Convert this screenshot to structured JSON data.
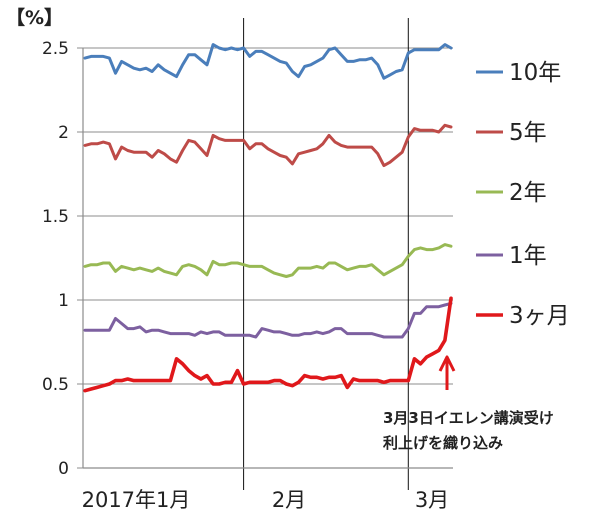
{
  "chart_data": {
    "type": "line",
    "unit_label": "【%】",
    "ylim": [
      0,
      2.5
    ],
    "y_ticks": [
      "0",
      "0.5",
      "1",
      "1.5",
      "2",
      "2.5"
    ],
    "grid": true,
    "legend_position": "right",
    "x_labels": [
      "2017年1月",
      "2月",
      "3月"
    ],
    "month_start_index": [
      0,
      26,
      53
    ],
    "annotation": {
      "lines": [
        "3月3日イエレン講演受け",
        "利上げを織り込み"
      ],
      "arrow": true
    },
    "colors": {
      "10y": "#4a7ebb",
      "5y": "#be4b48",
      "2y": "#98b954",
      "1y": "#7d60a0",
      "3m": "#e0181b"
    },
    "series": [
      {
        "key": "10y",
        "name": "10年",
        "color": "#4a7ebb",
        "width": 3,
        "values": [
          2.44,
          2.45,
          2.45,
          2.45,
          2.44,
          2.35,
          2.42,
          2.4,
          2.38,
          2.37,
          2.38,
          2.36,
          2.4,
          2.37,
          2.35,
          2.33,
          2.4,
          2.46,
          2.46,
          2.43,
          2.4,
          2.52,
          2.5,
          2.49,
          2.5,
          2.49,
          2.5,
          2.45,
          2.48,
          2.48,
          2.46,
          2.44,
          2.42,
          2.41,
          2.36,
          2.33,
          2.39,
          2.4,
          2.42,
          2.44,
          2.49,
          2.5,
          2.46,
          2.42,
          2.42,
          2.43,
          2.43,
          2.44,
          2.4,
          2.32,
          2.34,
          2.36,
          2.37,
          2.47,
          2.49,
          2.49,
          2.49,
          2.49,
          2.49,
          2.52,
          2.5
        ]
      },
      {
        "key": "5y",
        "name": "5年",
        "color": "#be4b48",
        "width": 3,
        "values": [
          1.92,
          1.93,
          1.93,
          1.94,
          1.93,
          1.84,
          1.91,
          1.89,
          1.88,
          1.88,
          1.88,
          1.85,
          1.89,
          1.87,
          1.84,
          1.82,
          1.89,
          1.95,
          1.94,
          1.9,
          1.86,
          1.98,
          1.96,
          1.95,
          1.95,
          1.95,
          1.95,
          1.9,
          1.93,
          1.93,
          1.9,
          1.88,
          1.86,
          1.85,
          1.81,
          1.87,
          1.88,
          1.89,
          1.9,
          1.93,
          1.98,
          1.94,
          1.92,
          1.91,
          1.91,
          1.91,
          1.91,
          1.91,
          1.87,
          1.8,
          1.82,
          1.85,
          1.88,
          1.97,
          2.02,
          2.01,
          2.01,
          2.01,
          2.0,
          2.04,
          2.03
        ]
      },
      {
        "key": "2y",
        "name": "2年",
        "color": "#98b954",
        "width": 3,
        "values": [
          1.2,
          1.21,
          1.21,
          1.22,
          1.22,
          1.17,
          1.2,
          1.19,
          1.18,
          1.19,
          1.18,
          1.17,
          1.19,
          1.17,
          1.16,
          1.15,
          1.2,
          1.21,
          1.2,
          1.18,
          1.15,
          1.23,
          1.21,
          1.21,
          1.22,
          1.22,
          1.21,
          1.2,
          1.2,
          1.2,
          1.18,
          1.16,
          1.15,
          1.14,
          1.15,
          1.19,
          1.19,
          1.19,
          1.2,
          1.19,
          1.22,
          1.22,
          1.2,
          1.18,
          1.19,
          1.2,
          1.2,
          1.21,
          1.18,
          1.15,
          1.17,
          1.19,
          1.21,
          1.26,
          1.3,
          1.31,
          1.3,
          1.3,
          1.31,
          1.33,
          1.32
        ]
      },
      {
        "key": "1y",
        "name": "1年",
        "color": "#7d60a0",
        "width": 3,
        "values": [
          0.82,
          0.82,
          0.82,
          0.82,
          0.82,
          0.89,
          0.86,
          0.83,
          0.83,
          0.84,
          0.81,
          0.82,
          0.82,
          0.81,
          0.8,
          0.8,
          0.8,
          0.8,
          0.79,
          0.81,
          0.8,
          0.81,
          0.81,
          0.79,
          0.79,
          0.79,
          0.79,
          0.79,
          0.78,
          0.83,
          0.82,
          0.81,
          0.81,
          0.8,
          0.79,
          0.79,
          0.8,
          0.8,
          0.81,
          0.8,
          0.81,
          0.83,
          0.83,
          0.8,
          0.8,
          0.8,
          0.8,
          0.8,
          0.79,
          0.78,
          0.78,
          0.78,
          0.78,
          0.83,
          0.92,
          0.92,
          0.96,
          0.96,
          0.96,
          0.97,
          0.98
        ]
      },
      {
        "key": "3m",
        "name": "3ヶ月",
        "color": "#e0181b",
        "width": 3.6,
        "values": [
          0.46,
          0.47,
          0.48,
          0.49,
          0.5,
          0.52,
          0.52,
          0.53,
          0.52,
          0.52,
          0.52,
          0.52,
          0.52,
          0.52,
          0.52,
          0.65,
          0.62,
          0.58,
          0.55,
          0.53,
          0.55,
          0.5,
          0.5,
          0.51,
          0.51,
          0.58,
          0.5,
          0.51,
          0.51,
          0.51,
          0.51,
          0.52,
          0.52,
          0.5,
          0.49,
          0.51,
          0.55,
          0.54,
          0.54,
          0.53,
          0.54,
          0.54,
          0.55,
          0.48,
          0.53,
          0.52,
          0.52,
          0.52,
          0.52,
          0.51,
          0.52,
          0.52,
          0.52,
          0.52,
          0.65,
          0.62,
          0.66,
          0.68,
          0.7,
          0.76,
          1.01
        ]
      }
    ]
  }
}
